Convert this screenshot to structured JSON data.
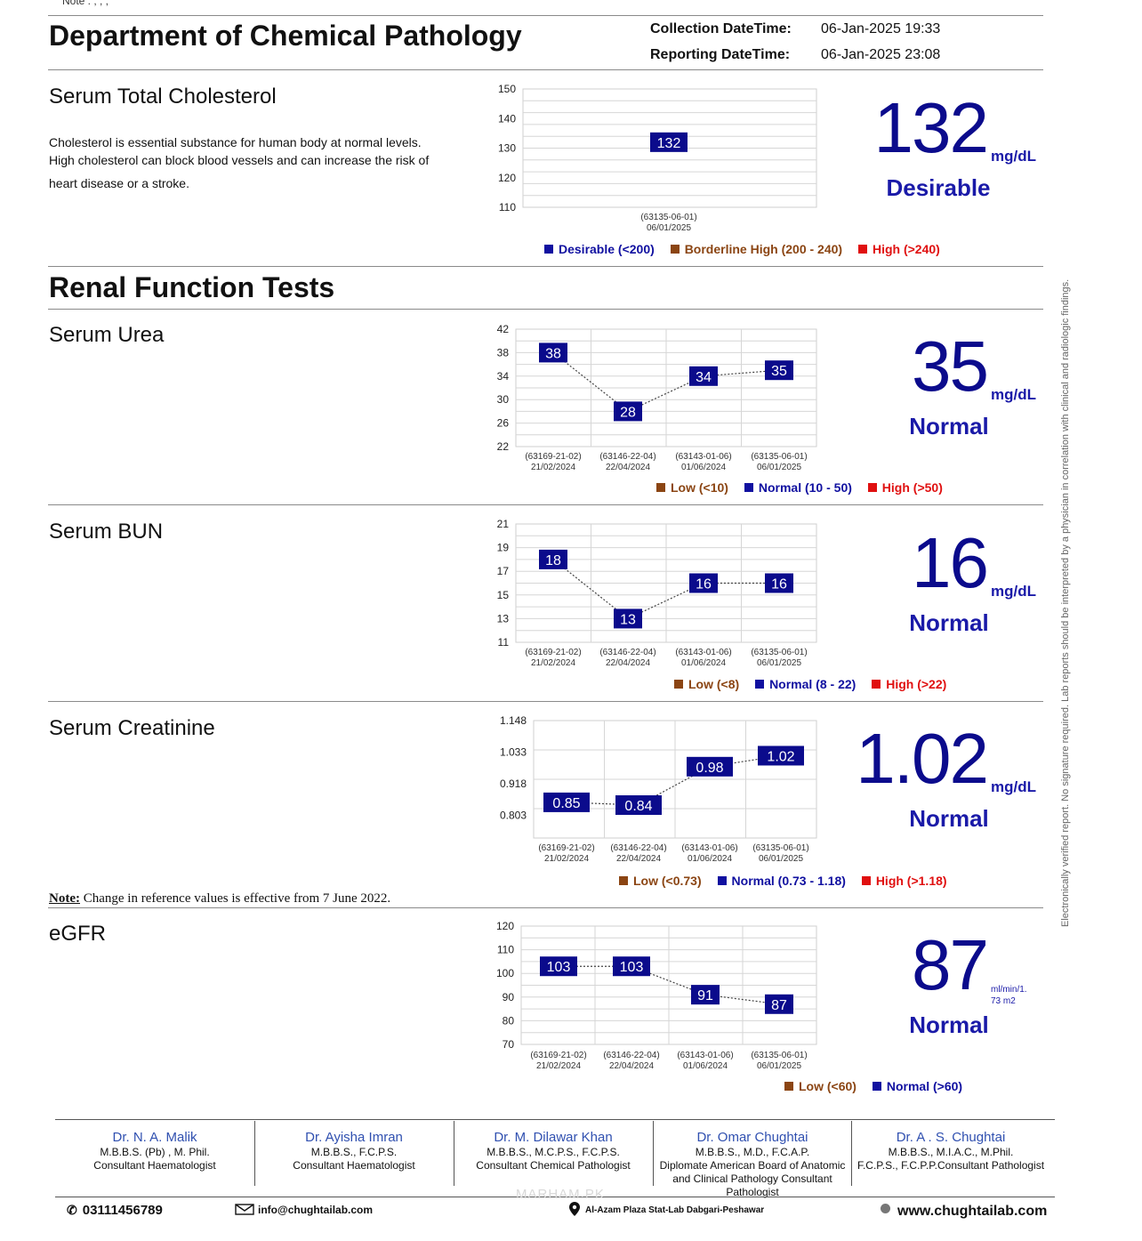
{
  "top_note": "Note :                    , , ,",
  "department": "Department of Chemical Pathology",
  "collection_label": "Collection DateTime:",
  "collection_value": "06-Jan-2025 19:33",
  "reporting_label": "Reporting DateTime:",
  "reporting_value": "06-Jan-2025 23:08",
  "cholesterol": {
    "title": "Serum Total Cholesterol",
    "desc1": "Cholesterol is essential substance for human body at normal levels.",
    "desc2": "High cholesterol can block blood vessels and can increase the risk of",
    "desc3": "heart disease or a stroke.",
    "value": "132",
    "unit": "mg/dL",
    "status": "Desirable",
    "legend": [
      "Desirable (<200)",
      "Borderline High (200 - 240)",
      "High (>240)"
    ]
  },
  "renal_title": "Renal Function Tests",
  "urea": {
    "title": "Serum Urea",
    "value": "35",
    "unit": "mg/dL",
    "status": "Normal",
    "legend": [
      "Low (<10)",
      "Normal (10 - 50)",
      "High (>50)"
    ]
  },
  "bun": {
    "title": "Serum BUN",
    "value": "16",
    "unit": "mg/dL",
    "status": "Normal",
    "legend": [
      "Low (<8)",
      "Normal (8 - 22)",
      "High (>22)"
    ]
  },
  "creatinine": {
    "title": "Serum Creatinine",
    "value": "1.02",
    "unit": "mg/dL",
    "status": "Normal",
    "legend": [
      "Low (<0.73)",
      "Normal (0.73 - 1.18)",
      "High (>1.18)"
    ]
  },
  "ref_note_label": "Note:",
  "ref_note_text": " Change in reference values is effective from 7 June 2022.",
  "egfr": {
    "title": "eGFR",
    "value": "87",
    "unit1": "ml/min/1.",
    "unit2": "73 m2",
    "status": "Normal",
    "legend": [
      "Low (<60)",
      "Normal (>60)"
    ]
  },
  "vertical_note": "Electronically verified report. No signature required. Lab reports should be interpreted by a physician in correlation with clinical and radiologic findings.",
  "doctors": [
    {
      "name": "Dr. N. A. Malik",
      "l1": "M.B.B.S. (Pb) , M. Phil.",
      "l2": "Consultant Haematologist",
      "l3": "",
      "l4": ""
    },
    {
      "name": "Dr. Ayisha Imran",
      "l1": "M.B.B.S., F.C.P.S.",
      "l2": "Consultant Haematologist",
      "l3": "",
      "l4": ""
    },
    {
      "name": "Dr. M. Dilawar Khan",
      "l1": "M.B.B.S., M.C.P.S., F.C.P.S.",
      "l2": "Consultant Chemical Pathologist",
      "l3": "",
      "l4": ""
    },
    {
      "name": "Dr. Omar Chughtai",
      "l1": "M.B.B.S., M.D., F.C.A.P.",
      "l2": "Diplomate American Board of Anatomic",
      "l3": "and Clinical Pathology Consultant",
      "l4": "Pathologist"
    },
    {
      "name": "Dr. A . S. Chughtai",
      "l1": "M.B.B.S., M.I.A.C., M.Phil.",
      "l2": "F.C.P.S., F.C.P.P.Consultant Pathologist",
      "l3": "",
      "l4": ""
    }
  ],
  "footer": {
    "phone": "03111456789",
    "email": "info@chughtailab.com",
    "address": "Al-Azam Plaza Stat-Lab Dabgari-Peshawar",
    "website": "www.chughtailab.com",
    "watermark": "MARHAM.PK"
  },
  "colors": {
    "normal": "#1010a0",
    "low": "#8b4513",
    "high": "#e01010",
    "point": "#0b0b8c"
  },
  "chart_data": [
    {
      "id": "chol",
      "type": "line",
      "ylim": [
        110,
        150
      ],
      "yticks": [
        "150",
        "140",
        "130",
        "120",
        "110"
      ],
      "grid_rows": 10,
      "x": [
        {
          "id": "(63135-06-01)",
          "date": "06/01/2025"
        }
      ],
      "values": [
        132
      ],
      "labels": [
        "132"
      ]
    },
    {
      "id": "urea",
      "type": "line",
      "ylim": [
        22,
        42
      ],
      "yticks": [
        "42",
        "38",
        "34",
        "30",
        "26",
        "22"
      ],
      "grid_rows": 10,
      "x": [
        {
          "id": "(63169-21-02)",
          "date": "21/02/2024"
        },
        {
          "id": "(63146-22-04)",
          "date": "22/04/2024"
        },
        {
          "id": "(63143-01-06)",
          "date": "01/06/2024"
        },
        {
          "id": "(63135-06-01)",
          "date": "06/01/2025"
        }
      ],
      "values": [
        38,
        28,
        34,
        35
      ],
      "labels": [
        "38",
        "28",
        "34",
        "35"
      ]
    },
    {
      "id": "bun",
      "type": "line",
      "ylim": [
        11,
        21
      ],
      "yticks": [
        "21",
        "19",
        "17",
        "15",
        "13",
        "11"
      ],
      "grid_rows": 10,
      "x": [
        {
          "id": "(63169-21-02)",
          "date": "21/02/2024"
        },
        {
          "id": "(63146-22-04)",
          "date": "22/04/2024"
        },
        {
          "id": "(63143-01-06)",
          "date": "01/06/2024"
        },
        {
          "id": "(63135-06-01)",
          "date": "06/01/2025"
        }
      ],
      "values": [
        18,
        13,
        16,
        16
      ],
      "labels": [
        "18",
        "13",
        "16",
        "16"
      ]
    },
    {
      "id": "creat",
      "type": "line",
      "ylim": [
        0.72,
        1.148
      ],
      "yticks": [
        "1.148",
        "1.033",
        "0.918",
        "0.803"
      ],
      "grid_rows": 4,
      "x": [
        {
          "id": "(63169-21-02)",
          "date": "21/02/2024"
        },
        {
          "id": "(63146-22-04)",
          "date": "22/04/2024"
        },
        {
          "id": "(63143-01-06)",
          "date": "01/06/2024"
        },
        {
          "id": "(63135-06-01)",
          "date": "06/01/2025"
        }
      ],
      "values": [
        0.85,
        0.84,
        0.98,
        1.02
      ],
      "labels": [
        "0.85",
        "0.84",
        "0.98",
        "1.02"
      ]
    },
    {
      "id": "egfr",
      "type": "line",
      "ylim": [
        70,
        120
      ],
      "yticks": [
        "120",
        "110",
        "100",
        "90",
        "80",
        "70"
      ],
      "grid_rows": 10,
      "x": [
        {
          "id": "(63169-21-02)",
          "date": "21/02/2024"
        },
        {
          "id": "(63146-22-04)",
          "date": "22/04/2024"
        },
        {
          "id": "(63143-01-06)",
          "date": "01/06/2024"
        },
        {
          "id": "(63135-06-01)",
          "date": "06/01/2025"
        }
      ],
      "values": [
        103,
        103,
        91,
        87
      ],
      "labels": [
        "103",
        "103",
        "91",
        "87"
      ]
    }
  ]
}
